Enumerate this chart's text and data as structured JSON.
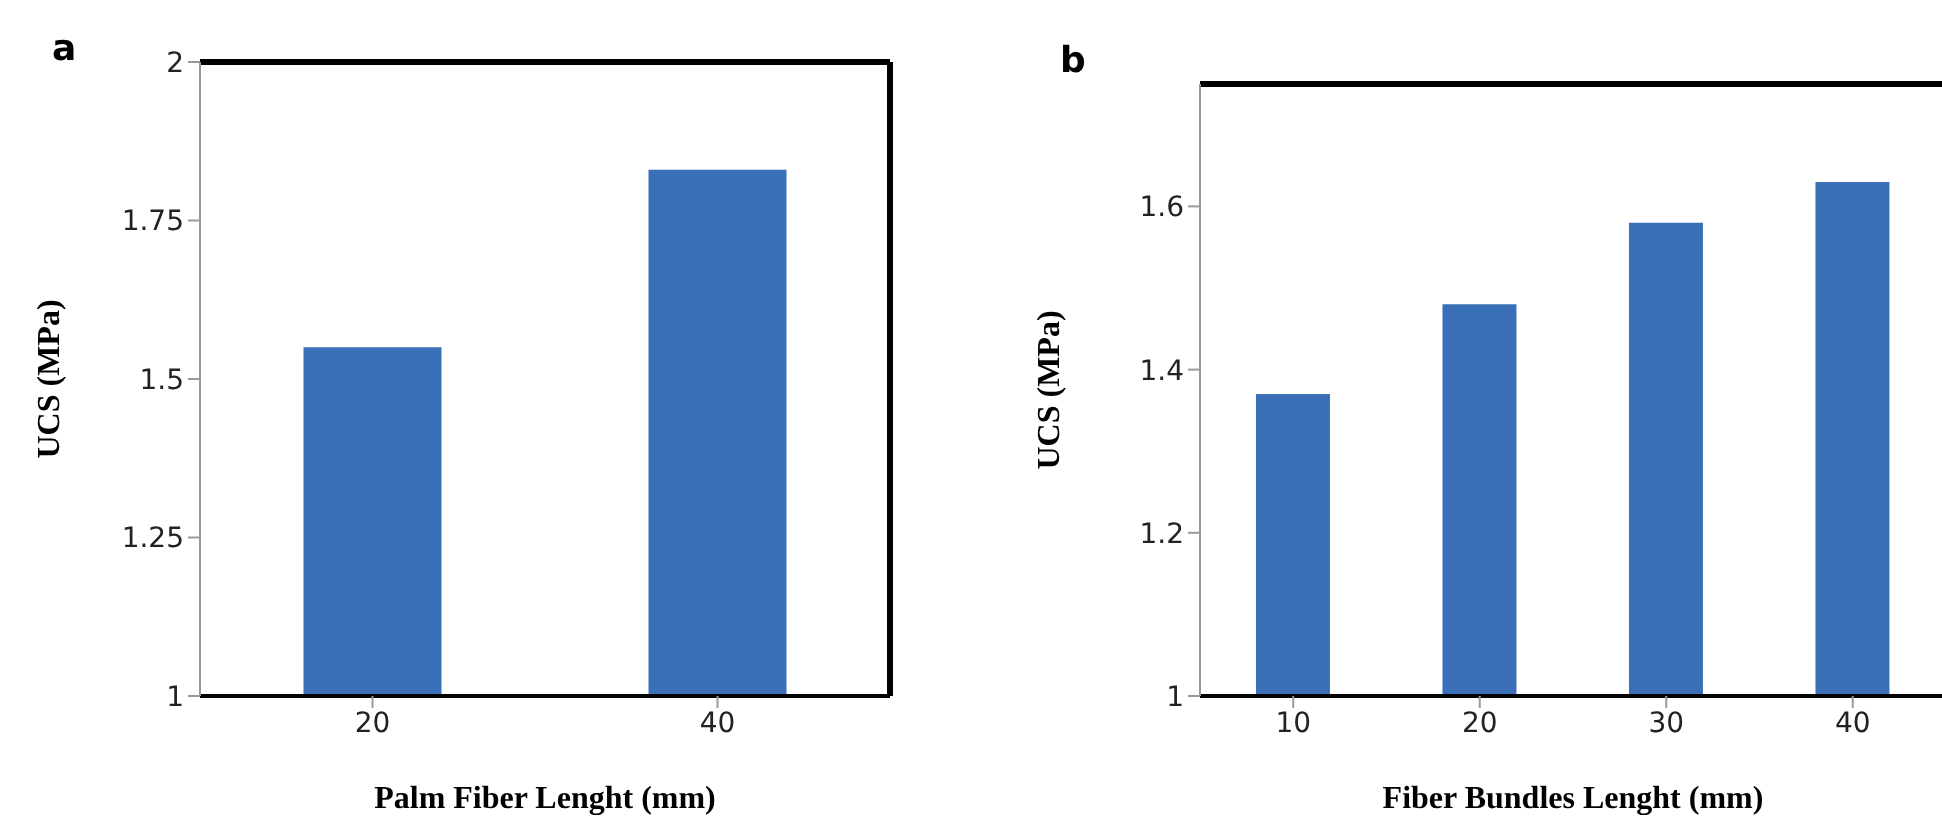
{
  "chart_data": [
    {
      "type": "bar",
      "title": "a",
      "xlabel": "Palm Fiber Lenght (mm)",
      "ylabel": "UCS (MPa)",
      "categories": [
        "20",
        "40"
      ],
      "values": [
        1.55,
        1.83
      ],
      "color": "#3a70b8",
      "ylim": [
        1,
        2
      ],
      "yticks": [
        1,
        1.25,
        1.5,
        1.75,
        2
      ],
      "grid": false,
      "legend": false
    },
    {
      "type": "bar",
      "title": "b",
      "xlabel": "Fiber Bundles Lenght (mm)",
      "ylabel": "UCS (MPa)",
      "categories": [
        "10",
        "20",
        "30",
        "40"
      ],
      "values": [
        1.37,
        1.48,
        1.58,
        1.63
      ],
      "color": "#3a70b8",
      "ylim": [
        1,
        1.75
      ],
      "yticks": [
        1,
        1.2,
        1.4,
        1.6
      ],
      "grid": false,
      "legend": false
    }
  ]
}
